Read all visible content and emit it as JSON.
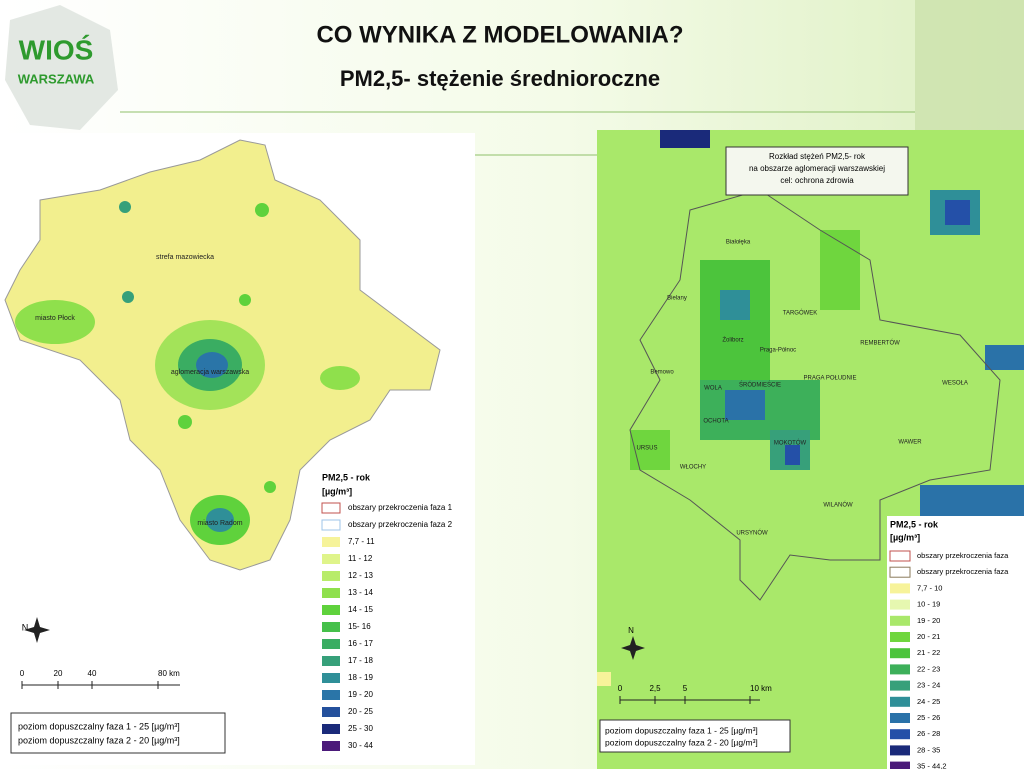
{
  "header": {
    "logo_top": "WIOŚ",
    "logo_bottom": "WARSZAWA",
    "title": "CO  WYNIKA  Z  MODELOWANIA?",
    "subtitle": "PM2,5- stężenie średnioroczne"
  },
  "left_map": {
    "place_labels": [
      "strefa mazowiecka",
      "miasto Płock",
      "aglomeracja warszawska",
      "miasto Radom"
    ],
    "north": "N",
    "scale": [
      "0",
      "20",
      "40",
      "80 km"
    ],
    "legend": {
      "title": "PM2,5 - rok",
      "unit": "[µg/m³]",
      "items": [
        {
          "label": "obszary przekroczenia faza 1",
          "color": "#ffffff",
          "border": "#c0504d"
        },
        {
          "label": "obszary przekroczenia faza 2",
          "color": "#ffffff",
          "border": "#9fc5e8"
        },
        {
          "label": "7,7 - 11",
          "color": "#f6f39a"
        },
        {
          "label": "11 - 12",
          "color": "#dff48a"
        },
        {
          "label": "12 - 13",
          "color": "#b8ec6a"
        },
        {
          "label": "13 - 14",
          "color": "#8fe04c"
        },
        {
          "label": "14 - 15",
          "color": "#5fd23c"
        },
        {
          "label": "15- 16",
          "color": "#45c04a"
        },
        {
          "label": "16 - 17",
          "color": "#3aad62"
        },
        {
          "label": "17 - 18",
          "color": "#36a07a"
        },
        {
          "label": "18 - 19",
          "color": "#2f8f98"
        },
        {
          "label": "19 - 20",
          "color": "#2a75a8"
        },
        {
          "label": "20 - 25",
          "color": "#24509c"
        },
        {
          "label": "25 - 30",
          "color": "#1a2a7a"
        },
        {
          "label": "30 - 44",
          "color": "#4b1a7a"
        }
      ]
    },
    "notes": [
      "poziom dopuszczalny faza 1 - 25  [µg/m³]",
      "poziom dopuszczalny faza 2 - 20  [µg/m³]"
    ]
  },
  "right_map": {
    "caption": [
      "Rozkład stężeń PM2,5- rok",
      "na obszarze aglomeracji warszawskiej",
      "cel: ochrona zdrowia"
    ],
    "district_labels": [
      "Białołęka",
      "Bielany",
      "TARGÓWEK",
      "Żoliborz",
      "REMBERTÓW",
      "Praga-Północ",
      "Bemowo",
      "WOLA",
      "ŚRÓDMIEŚCIE",
      "PRAGA POŁUDNIE",
      "WESOŁA",
      "OCHOTA",
      "URSUS",
      "MOKOTÓW",
      "WAWER",
      "WŁOCHY",
      "WILANÓW",
      "URSYNÓW"
    ],
    "north": "N",
    "scale": [
      "0",
      "2,5",
      "5",
      "10 km"
    ],
    "legend": {
      "title": "PM2,5 - rok",
      "unit": "[µg/m³]",
      "items": [
        {
          "label": "obszary przekroczenia faza",
          "color": "#ffffff",
          "border": "#c0504d"
        },
        {
          "label": "obszary przekroczenia faza",
          "color": "#ffffff",
          "border": "#8a7a5a"
        },
        {
          "label": "7,7 - 10",
          "color": "#f7f39a"
        },
        {
          "label": "10 - 19",
          "color": "#e6f7b0"
        },
        {
          "label": "19 - 20",
          "color": "#a9e86a"
        },
        {
          "label": "20 - 21",
          "color": "#6fd63e"
        },
        {
          "label": "21 - 22",
          "color": "#4cc43c"
        },
        {
          "label": "22 - 23",
          "color": "#3db05a"
        },
        {
          "label": "23 - 24",
          "color": "#37a07a"
        },
        {
          "label": "24 - 25",
          "color": "#2f8f98"
        },
        {
          "label": "25 - 26",
          "color": "#2a72a8"
        },
        {
          "label": "26 - 28",
          "color": "#2450a8"
        },
        {
          "label": "28 - 35",
          "color": "#1a2a7a"
        },
        {
          "label": "35 - 44,2",
          "color": "#4b1a7a"
        }
      ]
    },
    "notes": [
      "poziom dopuszczalny  faza 1 - 25 [µg/m³]",
      "poziom dopuszczalny  faza 2 - 20 [µg/m³]"
    ]
  }
}
